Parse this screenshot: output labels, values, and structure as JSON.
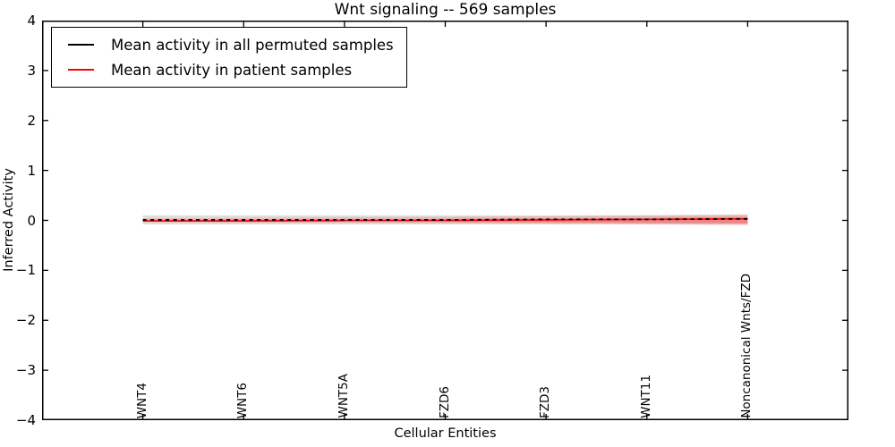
{
  "chart_data": {
    "type": "line",
    "title": "Wnt signaling -- 569 samples",
    "xlabel": "Cellular Entities",
    "ylabel": "Inferred Activity",
    "ylim": [
      -4,
      4
    ],
    "yticks": [
      4,
      3,
      2,
      1,
      0,
      -1,
      -2,
      -3,
      -4
    ],
    "ytick_labels": [
      "4",
      "3",
      "2",
      "1",
      "0",
      "−1",
      "−2",
      "−3",
      "−4"
    ],
    "categories": [
      "WNT4",
      "WNT6",
      "WNT5A",
      "FZD6",
      "FZD3",
      "WNT11",
      "Noncanonical Wnts/FZD"
    ],
    "grid": false,
    "legend_position": "upper left",
    "frame_color": "#000000",
    "background_color": "#ffffff",
    "series": [
      {
        "name": "Mean activity in all permuted samples",
        "color": "#000000",
        "line_style": "dashed",
        "values": [
          0.01,
          0.01,
          0.01,
          0.01,
          0.02,
          0.02,
          0.03
        ],
        "bands": [
          {
            "upper": [
              0.1,
              0.1,
              0.1,
              0.1,
              0.1,
              0.1,
              0.11
            ],
            "lower": [
              -0.08,
              -0.08,
              -0.08,
              -0.08,
              -0.08,
              -0.08,
              -0.08
            ],
            "color": "rgba(0,0,0,0.13)"
          }
        ]
      },
      {
        "name": "Mean activity in patient samples",
        "color": "#ff0000",
        "line_style": "solid",
        "values": [
          -0.01,
          -0.01,
          0.0,
          0.0,
          0.01,
          0.02,
          0.03
        ],
        "bands": [
          {
            "upper": [
              0.04,
              0.05,
              0.06,
              0.07,
              0.08,
              0.1,
              0.12
            ],
            "lower": [
              -0.04,
              -0.05,
              -0.05,
              -0.06,
              -0.07,
              -0.08,
              -0.1
            ],
            "color": "rgba(255,0,0,0.16)"
          },
          {
            "upper": [
              0.01,
              0.02,
              0.02,
              0.03,
              0.04,
              0.05,
              0.07
            ],
            "lower": [
              -0.02,
              -0.03,
              -0.03,
              -0.03,
              -0.04,
              -0.05,
              -0.06
            ],
            "color": "rgba(255,0,0,0.28)"
          }
        ]
      }
    ]
  }
}
